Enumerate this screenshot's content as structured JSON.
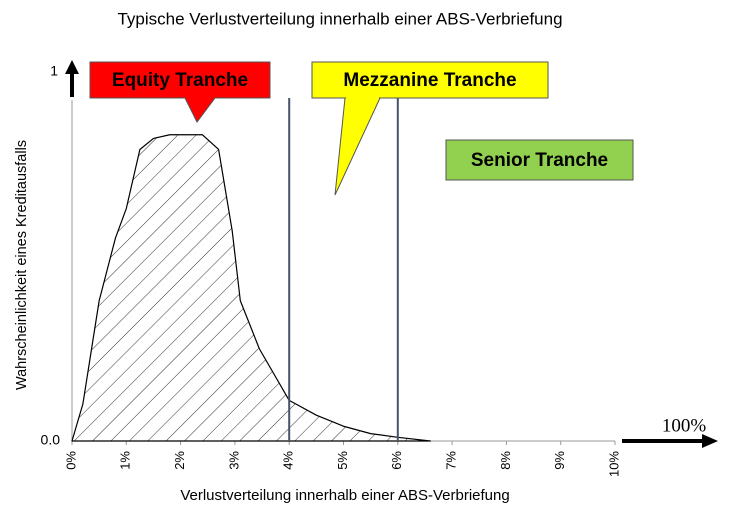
{
  "chart_data": {
    "type": "area",
    "title": "Typische Verlustverteilung innerhalb einer ABS-Verbriefung",
    "x_label": "Verlustverteilung innerhalb einer ABS-Verbriefung",
    "y_label": "Wahrscheinlichkeit eines Kreditausfalls",
    "x": [
      0,
      0.2,
      0.5,
      0.8,
      1.0,
      1.25,
      1.5,
      1.8,
      2.1,
      2.4,
      2.7,
      2.95,
      3.1,
      3.45,
      4.0,
      4.5,
      5.0,
      5.5,
      6.0,
      6.6
    ],
    "values": [
      0,
      0.1,
      0.38,
      0.55,
      0.63,
      0.79,
      0.82,
      0.83,
      0.83,
      0.83,
      0.79,
      0.57,
      0.38,
      0.25,
      0.11,
      0.07,
      0.04,
      0.02,
      0.01,
      0
    ],
    "color": "#000000",
    "xlim": [
      0,
      10
    ],
    "xticks": [
      {
        "value": 0,
        "label": "0%"
      },
      {
        "value": 1,
        "label": "1%"
      },
      {
        "value": 2,
        "label": "2%"
      },
      {
        "value": 3,
        "label": "3%"
      },
      {
        "value": 4,
        "label": "4%"
      },
      {
        "value": 5,
        "label": "5%"
      },
      {
        "value": 6,
        "label": "6%"
      },
      {
        "value": 7,
        "label": "7%"
      },
      {
        "value": 8,
        "label": "8%"
      },
      {
        "value": 9,
        "label": "9%"
      },
      {
        "value": 10,
        "label": "10%"
      }
    ],
    "ylim": [
      0,
      1
    ],
    "yticks": [
      {
        "value": 0,
        "label": "0.0"
      },
      1
    ],
    "x_end_label": "100%",
    "boundaries": [
      4,
      6
    ],
    "annotations": [
      {
        "text": "Equity Tranche",
        "color": "#ff0000"
      },
      {
        "text": "Mezzanine Tranche",
        "color": "#ffff00"
      },
      {
        "text": "Senior Tranche",
        "color": "#92d050"
      }
    ]
  }
}
